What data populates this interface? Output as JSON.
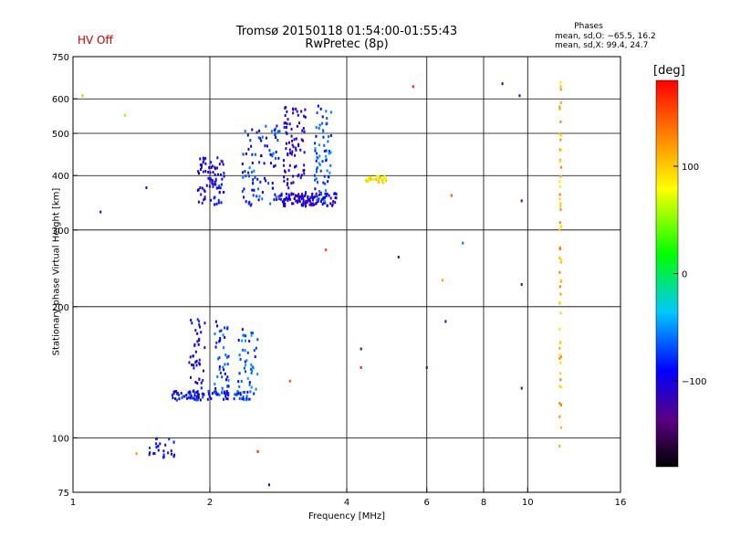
{
  "header": {
    "hv_status": "HV Off",
    "title_line1": "Tromsø 20150118 01:54:00-01:55:43",
    "title_line2": "RwPretec (8p)"
  },
  "stats": {
    "heading": "Phases",
    "line_o": "mean, sd,O: −65.5, 16.2",
    "line_x": "mean, sd,X:  99.4, 24.7"
  },
  "colorbar": {
    "label": "[deg]",
    "ticks": [
      {
        "value": 100,
        "label": "100"
      },
      {
        "value": 0,
        "label": "0"
      },
      {
        "value": -100,
        "label": "−100"
      }
    ],
    "range": [
      -180,
      180
    ]
  },
  "colors": {
    "frame": "#000000",
    "grid": "#000000",
    "hv": "#cc0000"
  },
  "chart_data": {
    "type": "scatter",
    "title": "Tromsø 20150118 01:54:00-01:55:43",
    "xlabel": "Frequency [MHz]",
    "ylabel": "Stationary phase Virtual Height [km]",
    "xscale": "log",
    "yscale": "log",
    "xlim": [
      1,
      16
    ],
    "ylim": [
      75,
      750
    ],
    "x_ticks": [
      {
        "value": 1,
        "label": "1"
      },
      {
        "value": 2,
        "label": "2"
      },
      {
        "value": 4,
        "label": "4"
      },
      {
        "value": 6,
        "label": "6"
      },
      {
        "value": 8,
        "label": "8"
      },
      {
        "value": 10,
        "label": "10"
      },
      {
        "value": 16,
        "label": "16"
      }
    ],
    "y_ticks": [
      {
        "value": 75,
        "label": "75"
      },
      {
        "value": 100,
        "label": "100"
      },
      {
        "value": 200,
        "label": "200"
      },
      {
        "value": 300,
        "label": "300"
      },
      {
        "value": 400,
        "label": "400"
      },
      {
        "value": 500,
        "label": "500"
      },
      {
        "value": 600,
        "label": "600"
      },
      {
        "value": 750,
        "label": "750"
      }
    ],
    "x_gridlines": [
      2,
      4,
      6,
      8,
      10
    ],
    "y_gridlines": [
      100,
      200,
      300,
      400,
      500,
      600
    ],
    "color_variable": "phase [deg]",
    "clusters": [
      {
        "name": "E-region trace",
        "f_range": [
          1.65,
          2.45
        ],
        "h_range": [
          122,
          128
        ],
        "count": 90,
        "phase": -85
      },
      {
        "name": "E-region vertical 1",
        "f_range": [
          1.8,
          1.95
        ],
        "h_range": [
          125,
          190
        ],
        "count": 45,
        "phase": -100
      },
      {
        "name": "E-region vertical 2",
        "f_range": [
          2.05,
          2.2
        ],
        "h_range": [
          125,
          185
        ],
        "count": 45,
        "phase": -75
      },
      {
        "name": "E-region vertical 3",
        "f_range": [
          2.3,
          2.55
        ],
        "h_range": [
          125,
          180
        ],
        "count": 45,
        "phase": -70
      },
      {
        "name": "Es low",
        "f_range": [
          1.45,
          1.68
        ],
        "h_range": [
          90,
          100
        ],
        "count": 25,
        "phase": -95
      },
      {
        "name": "F-region lower trace",
        "f_range": [
          2.8,
          3.8
        ],
        "h_range": [
          340,
          365
        ],
        "count": 110,
        "phase": -110
      },
      {
        "name": "F-region band 1",
        "f_range": [
          1.88,
          2.15
        ],
        "h_range": [
          340,
          440
        ],
        "count": 80,
        "phase": -100
      },
      {
        "name": "F-region band 2",
        "f_range": [
          2.35,
          2.85
        ],
        "h_range": [
          340,
          520
        ],
        "count": 90,
        "phase": -80
      },
      {
        "name": "F-region band 3",
        "f_range": [
          2.9,
          3.25
        ],
        "h_range": [
          340,
          580
        ],
        "count": 90,
        "phase": -110
      },
      {
        "name": "F-region band 4",
        "f_range": [
          3.4,
          3.7
        ],
        "h_range": [
          345,
          590
        ],
        "count": 70,
        "phase": -70
      },
      {
        "name": "X-mode trace",
        "f_range": [
          4.4,
          4.9
        ],
        "h_range": [
          385,
          400
        ],
        "count": 30,
        "phase": 90
      },
      {
        "name": "interference column 11.8 MHz",
        "f_range": [
          11.75,
          11.85
        ],
        "h_range": [
          95,
          660
        ],
        "count": 60,
        "phase": 110
      }
    ],
    "isolated_points": [
      {
        "f": 1.05,
        "h": 610,
        "phase": 110
      },
      {
        "f": 1.15,
        "h": 330,
        "phase": -120
      },
      {
        "f": 1.3,
        "h": 550,
        "phase": 50
      },
      {
        "f": 1.45,
        "h": 375,
        "phase": -100
      },
      {
        "f": 1.38,
        "h": 92,
        "phase": 120
      },
      {
        "f": 2.55,
        "h": 93,
        "phase": 165
      },
      {
        "f": 2.7,
        "h": 78,
        "phase": -110
      },
      {
        "f": 3.0,
        "h": 135,
        "phase": 150
      },
      {
        "f": 3.6,
        "h": 270,
        "phase": 160
      },
      {
        "f": 4.3,
        "h": 160,
        "phase": -130
      },
      {
        "f": 4.3,
        "h": 145,
        "phase": 170
      },
      {
        "f": 5.2,
        "h": 260,
        "phase": -120
      },
      {
        "f": 5.6,
        "h": 640,
        "phase": 170
      },
      {
        "f": 6.0,
        "h": 145,
        "phase": -120
      },
      {
        "f": 6.5,
        "h": 230,
        "phase": 120
      },
      {
        "f": 6.6,
        "h": 185,
        "phase": -120
      },
      {
        "f": 6.8,
        "h": 360,
        "phase": 150
      },
      {
        "f": 7.2,
        "h": 280,
        "phase": -60
      },
      {
        "f": 8.8,
        "h": 650,
        "phase": -110
      },
      {
        "f": 9.6,
        "h": 610,
        "phase": -110
      },
      {
        "f": 9.7,
        "h": 350,
        "phase": -120
      },
      {
        "f": 9.7,
        "h": 225,
        "phase": -120
      },
      {
        "f": 9.7,
        "h": 130,
        "phase": -140
      }
    ]
  }
}
